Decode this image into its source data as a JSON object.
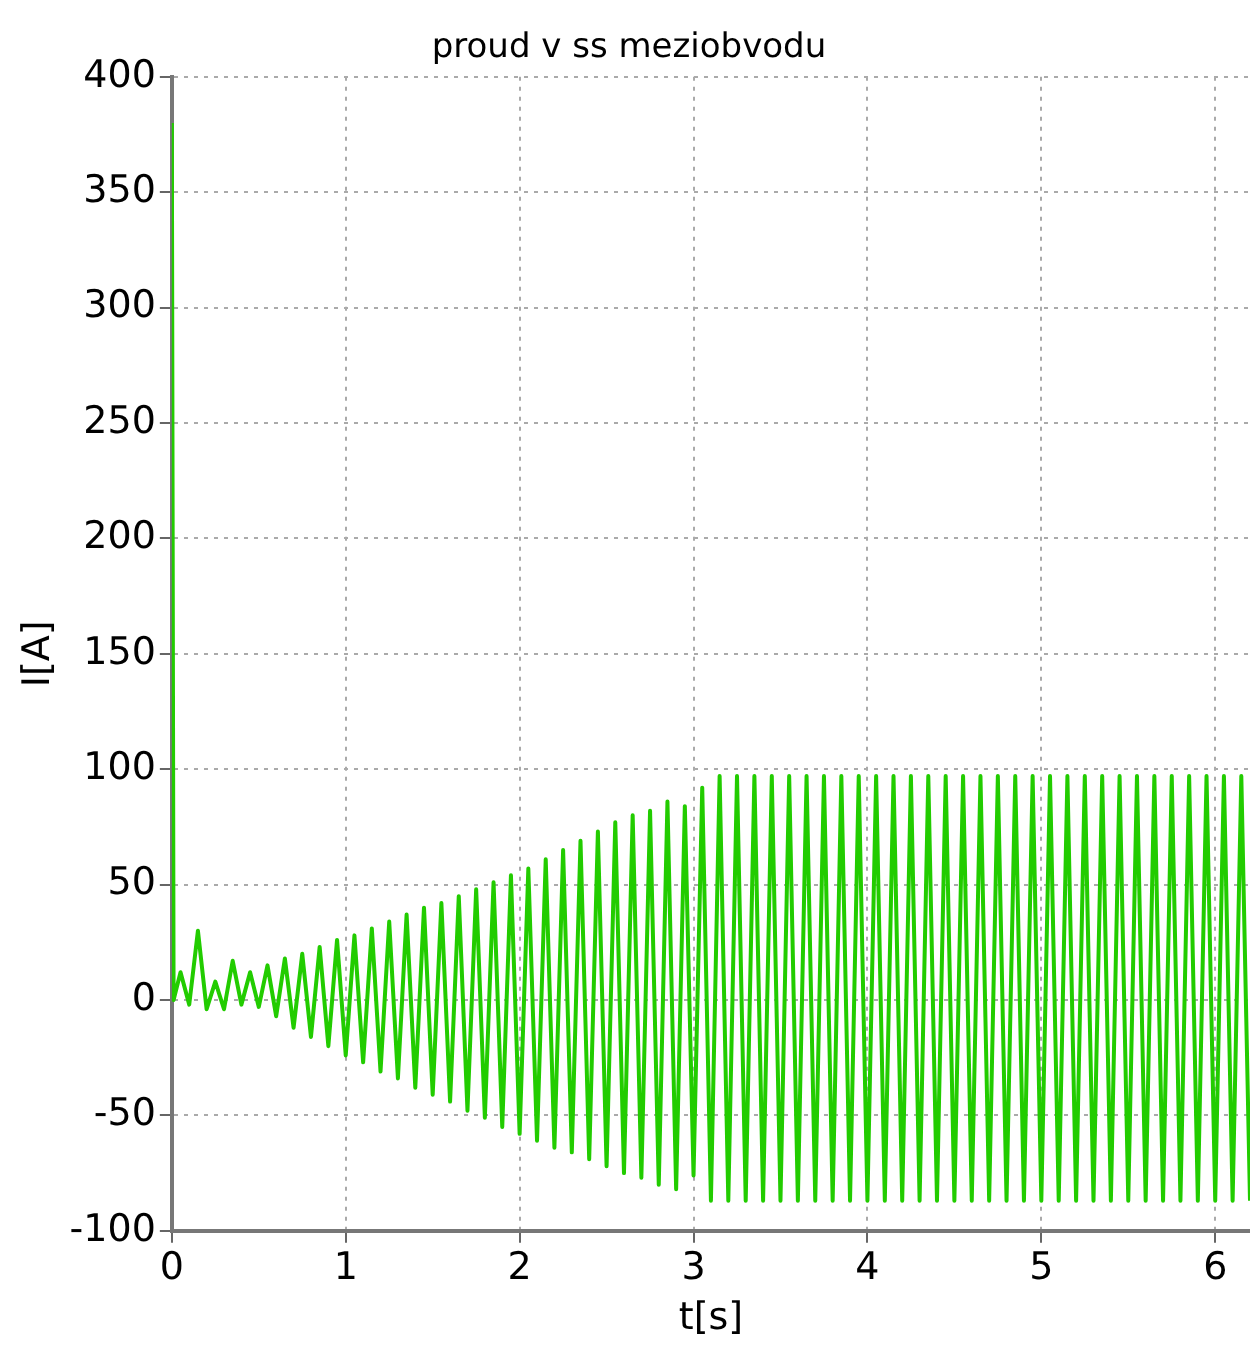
{
  "chart_data": {
    "type": "line",
    "title": "proud v ss meziobvodu",
    "xlabel": "t[s]",
    "ylabel": "I[A]",
    "x": [
      0,
      0.01,
      0.05,
      0.1,
      0.15,
      0.2,
      0.25,
      0.3,
      0.35,
      0.4,
      0.45,
      0.5,
      0.55,
      0.6,
      0.65,
      0.7,
      0.75,
      0.8,
      0.85,
      0.9,
      0.95,
      1,
      1.05,
      1.1,
      1.15,
      1.2,
      1.25,
      1.3,
      1.35,
      1.4,
      1.45,
      1.5,
      1.55,
      1.6,
      1.65,
      1.7,
      1.75,
      1.8,
      1.85,
      1.9,
      1.95,
      2,
      2.05,
      2.1,
      2.15,
      2.2,
      2.25,
      2.3,
      2.35,
      2.4,
      2.45,
      2.5,
      2.55,
      2.6,
      2.65,
      2.7,
      2.75,
      2.8,
      2.85,
      2.9,
      2.95,
      3,
      3.05,
      3.1,
      3.15,
      3.2,
      3.25,
      3.3,
      3.35,
      3.4,
      3.45,
      3.5,
      3.55,
      3.6,
      3.65,
      3.7,
      3.75,
      3.8,
      3.85,
      3.9,
      3.95,
      4,
      4.05,
      4.1,
      4.15,
      4.2,
      4.25,
      4.3,
      4.35,
      4.4,
      4.45,
      4.5,
      4.55,
      4.6,
      4.65,
      4.7,
      4.75,
      4.8,
      4.85,
      4.9,
      4.95,
      5,
      5.05,
      5.1,
      5.15,
      5.2,
      5.25,
      5.3,
      5.35,
      5.4,
      5.45,
      5.5,
      5.55,
      5.6,
      5.65,
      5.7,
      5.75,
      5.8,
      5.85,
      5.9,
      5.95,
      6,
      6.05,
      6.1,
      6.15,
      6.2
    ],
    "series": [
      {
        "color": "#22cc00",
        "values": [
          380,
          0,
          12,
          -2,
          30,
          -4,
          8,
          -4,
          17,
          -2,
          12,
          -3,
          15,
          -7,
          18,
          -12,
          20,
          -16,
          23,
          -20,
          26,
          -24,
          28,
          -27,
          31,
          -31,
          34,
          -34,
          37,
          -38,
          40,
          -41,
          42,
          -44,
          45,
          -48,
          48,
          -51,
          51,
          -55,
          54,
          -58,
          57,
          -61,
          61,
          -64,
          65,
          -66,
          69,
          -69,
          73,
          -72,
          77,
          -75,
          80,
          -77,
          82,
          -80,
          86,
          -82,
          84,
          -76,
          92,
          -87,
          97,
          -87,
          97,
          -87,
          97,
          -87,
          97,
          -87,
          97,
          -87,
          97,
          -87,
          97,
          -87,
          97,
          -87,
          97,
          -87,
          97,
          -87,
          97,
          -87,
          97,
          -87,
          97,
          -87,
          97,
          -87,
          97,
          -87,
          97,
          -87,
          97,
          -87,
          97,
          -87,
          97,
          -87,
          97,
          -87,
          97,
          -87,
          97,
          -87,
          97,
          -87,
          97,
          -87,
          97,
          -87,
          97,
          -87,
          97,
          -87,
          97,
          -87,
          97,
          -87,
          97,
          -87,
          97,
          -87
        ]
      }
    ],
    "xlim": [
      0,
      6.2
    ],
    "xticks": [
      0,
      1,
      2,
      3,
      4,
      5,
      6
    ],
    "ylim": [
      -100,
      400
    ],
    "yticks": [
      -100,
      -50,
      0,
      50,
      100,
      150,
      200,
      250,
      300,
      350,
      400
    ],
    "grid": true,
    "marker": "none",
    "line_style": "solid"
  }
}
